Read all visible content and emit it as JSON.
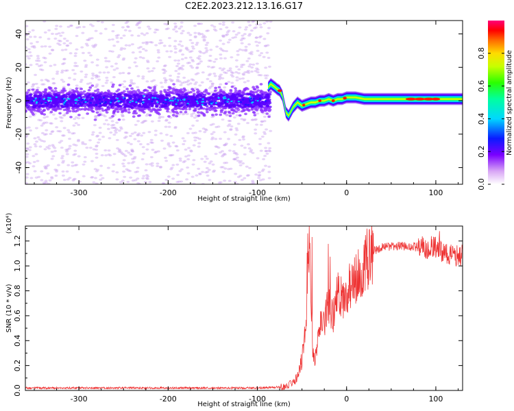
{
  "title": "C2E2.2023.212.13.16.G17",
  "chart_data": [
    {
      "type": "heatmap",
      "xlabel": "Height of straight line (km)",
      "ylabel": "Frequency (Hz)",
      "xlim": [
        -360,
        130
      ],
      "ylim": [
        -50,
        48
      ],
      "xticks": [
        -300,
        -200,
        -100,
        0,
        100
      ],
      "yticks": [
        -40,
        -20,
        0,
        20,
        40
      ],
      "colorbar": {
        "label": "Normalized spectral amplitude",
        "range": [
          0,
          1
        ],
        "ticks": [
          "0.0",
          "0.2",
          "0.4",
          "0.6",
          "0.8"
        ]
      },
      "ridge": {
        "x": [
          -360,
          -100,
          -85,
          -80,
          -78,
          -75,
          -72,
          -70,
          -68,
          -65,
          -60,
          -55,
          -50,
          -45,
          -40,
          -35,
          -30,
          -25,
          -20,
          -15,
          -10,
          -5,
          0,
          10,
          20,
          40,
          60,
          80,
          100,
          120,
          130
        ],
        "y": [
          0,
          0,
          10,
          8,
          7,
          6,
          3,
          -2,
          -7,
          -9,
          -4,
          -1,
          -3,
          -2,
          -1,
          -1,
          0,
          0,
          1,
          0,
          1,
          1,
          2,
          2,
          1,
          1,
          1,
          1,
          1,
          1,
          1
        ]
      }
    },
    {
      "type": "line",
      "xlabel": "Height of straight line (km)",
      "ylabel": "SNR (10 * v/v)",
      "y_multiplier": "(x10⁴)",
      "xlim": [
        -360,
        130
      ],
      "ylim": [
        0,
        1.32
      ],
      "xticks": [
        -300,
        -200,
        -100,
        0,
        100
      ],
      "yticks": [
        "0.0",
        "0.2",
        "0.4",
        "0.6",
        "0.8",
        "1.0",
        "1.2"
      ],
      "color": "#ee3333",
      "envelope": {
        "x": [
          -360,
          -100,
          -70,
          -60,
          -55,
          -50,
          -45,
          -42,
          -40,
          -38,
          -35,
          -30,
          -25,
          -20,
          -15,
          -10,
          -5,
          0,
          10,
          20,
          30,
          40,
          60,
          80,
          90,
          100,
          110,
          120,
          130
        ],
        "y": [
          0.02,
          0.02,
          0.03,
          0.06,
          0.12,
          0.25,
          0.6,
          1.25,
          0.7,
          0.3,
          0.25,
          0.5,
          0.55,
          0.7,
          0.6,
          0.8,
          0.72,
          0.8,
          0.88,
          1.02,
          1.12,
          1.15,
          1.16,
          1.15,
          1.14,
          1.15,
          1.1,
          1.08,
          1.08
        ]
      }
    }
  ]
}
